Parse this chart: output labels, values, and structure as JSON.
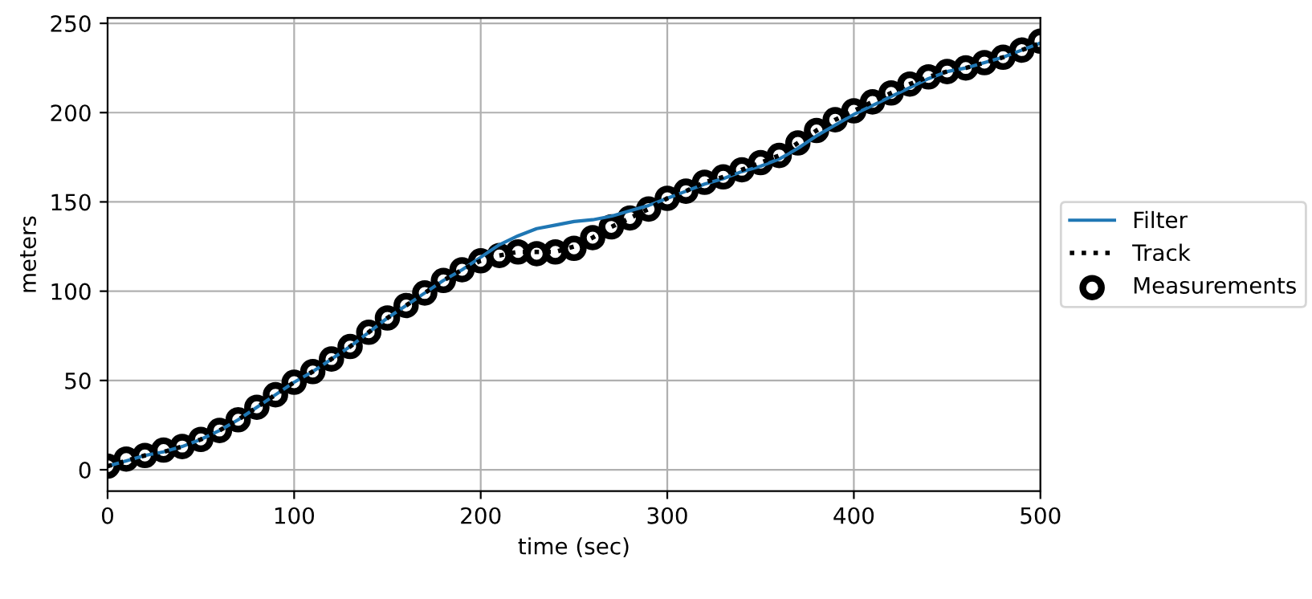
{
  "chart_data": {
    "type": "line",
    "xlabel": "time (sec)",
    "ylabel": "meters",
    "xlim": [
      0,
      500
    ],
    "ylim": [
      -12,
      253
    ],
    "xticks": [
      0,
      100,
      200,
      300,
      400,
      500
    ],
    "yticks": [
      0,
      50,
      100,
      150,
      200,
      250
    ],
    "grid": true,
    "legend": "right",
    "x": [
      0,
      10,
      20,
      30,
      40,
      50,
      60,
      70,
      80,
      90,
      100,
      110,
      120,
      130,
      140,
      150,
      160,
      170,
      180,
      190,
      200,
      210,
      220,
      230,
      240,
      250,
      260,
      270,
      280,
      290,
      300,
      310,
      320,
      330,
      340,
      350,
      360,
      370,
      380,
      390,
      400,
      410,
      420,
      430,
      440,
      450,
      460,
      470,
      480,
      490,
      500
    ],
    "series": [
      {
        "name": "Filter",
        "color": "#1f77b4",
        "line_style": "solid",
        "values": [
          2,
          5,
          8,
          10,
          13,
          17,
          22,
          28,
          35,
          42,
          49,
          55,
          62,
          69,
          77,
          85,
          92,
          99,
          106,
          112,
          119,
          126,
          131,
          135,
          137,
          139,
          140,
          142,
          145,
          148,
          152,
          156,
          160,
          163,
          167,
          170,
          174,
          180,
          187,
          193,
          199,
          204,
          209,
          214,
          219,
          223,
          225,
          228,
          231,
          235,
          239
        ]
      },
      {
        "name": "Track",
        "color": "#000000",
        "line_style": "dotted",
        "values": [
          2,
          5,
          8,
          10,
          13,
          17,
          22,
          28,
          35,
          42,
          49,
          55,
          62,
          69,
          77,
          85,
          92,
          99,
          106,
          112,
          117,
          120,
          122,
          122,
          122,
          125,
          130,
          136,
          141,
          146,
          152,
          156,
          161,
          164,
          168,
          172,
          176,
          183,
          190,
          196,
          201,
          206,
          211,
          216,
          220,
          223,
          225,
          228,
          231,
          235,
          239
        ]
      },
      {
        "name": "Measurements",
        "type": "scatter",
        "color": "#000000",
        "marker": "circle",
        "values": [
          2,
          6,
          8,
          11,
          13,
          17,
          22,
          28,
          35,
          42,
          49,
          55,
          62,
          69,
          77,
          85,
          92,
          99,
          106,
          112,
          117,
          120,
          122,
          121,
          122,
          124,
          130,
          136,
          141,
          146,
          152,
          156,
          161,
          164,
          168,
          172,
          176,
          183,
          190,
          196,
          201,
          206,
          211,
          216,
          220,
          223,
          225,
          228,
          231,
          235,
          240
        ]
      }
    ]
  }
}
